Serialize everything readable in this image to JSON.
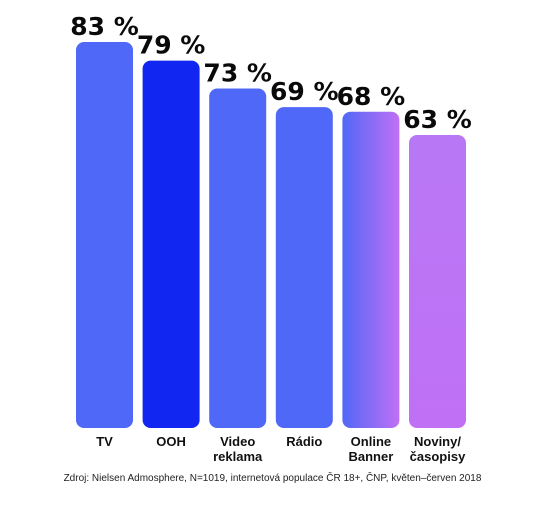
{
  "chart_data": {
    "type": "bar",
    "categories": [
      [
        "TV"
      ],
      [
        "OOH"
      ],
      [
        "Video",
        "reklama"
      ],
      [
        "Rádio"
      ],
      [
        "Online",
        "Banner"
      ],
      [
        "Noviny/",
        "časopisy"
      ]
    ],
    "values": [
      83,
      79,
      73,
      69,
      68,
      63
    ],
    "value_labels": [
      "83 %",
      "79 %",
      "73 %",
      "69 %",
      "68 %",
      "63 %"
    ],
    "highlight_category_index": 1,
    "ylim": [
      0,
      83
    ],
    "grid": false,
    "legend": "none"
  },
  "colors": {
    "bar_default": "#5068f7",
    "bar_highlight": "#1126f0",
    "bar_gradient_end": "#c070f5",
    "bar_last_top": "#b878f5",
    "bar_last_bottom": "#c070f5",
    "highlight_text": "#1a2ce0",
    "label_text": "#111111"
  },
  "source": "Zdroj: Nielsen Admosphere, N=1019, internetová populace ČR 18+, ČNP, květen–červen 2018"
}
